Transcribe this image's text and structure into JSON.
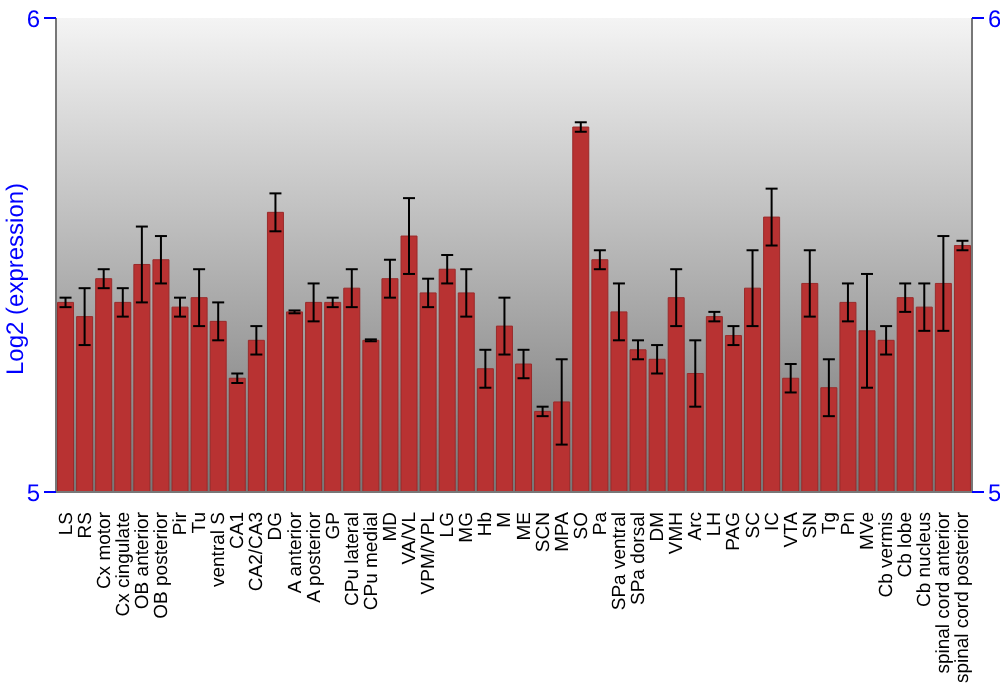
{
  "chart_data": {
    "type": "bar",
    "ylabel": "Log2 (expression)",
    "categories": [
      "LS",
      "RS",
      "Cx motor",
      "Cx cingulate",
      "OB anterior",
      "OB posterior",
      "Pir",
      "Tu",
      "ventral S",
      "CA1",
      "CA2/CA3",
      "DG",
      "A anterior",
      "A posterior",
      "GP",
      "CPu lateral",
      "CPu medial",
      "MD",
      "VA/VL",
      "VPM/VPL",
      "LG",
      "MG",
      "Hb",
      "M",
      "ME",
      "SCN",
      "MPA",
      "SO",
      "Pa",
      "SPa ventral",
      "SPa dorsal",
      "DM",
      "VMH",
      "Arc",
      "LH",
      "PAG",
      "SC",
      "IC",
      "VTA",
      "SN",
      "Tg",
      "Pn",
      "MVe",
      "Cb vermis",
      "Cb lobe",
      "Cb nucleus",
      "spinal cord anterior",
      "spinal cord posterior"
    ],
    "values": [
      5.4,
      5.37,
      5.45,
      5.4,
      5.48,
      5.49,
      5.39,
      5.41,
      5.36,
      5.24,
      5.32,
      5.59,
      5.38,
      5.4,
      5.4,
      5.43,
      5.32,
      5.45,
      5.54,
      5.42,
      5.47,
      5.42,
      5.26,
      5.35,
      5.27,
      5.17,
      5.19,
      5.77,
      5.49,
      5.38,
      5.3,
      5.28,
      5.41,
      5.25,
      5.37,
      5.33,
      5.43,
      5.58,
      5.24,
      5.44,
      5.22,
      5.4,
      5.34,
      5.32,
      5.41,
      5.39,
      5.44,
      5.52
    ],
    "errors": [
      0.01,
      0.06,
      0.02,
      0.03,
      0.08,
      0.05,
      0.02,
      0.06,
      0.04,
      0.01,
      0.03,
      0.04,
      0.003,
      0.04,
      0.01,
      0.04,
      0.002,
      0.04,
      0.08,
      0.03,
      0.03,
      0.05,
      0.04,
      0.06,
      0.03,
      0.01,
      0.09,
      0.01,
      0.02,
      0.06,
      0.02,
      0.03,
      0.06,
      0.07,
      0.01,
      0.02,
      0.08,
      0.06,
      0.03,
      0.07,
      0.06,
      0.04,
      0.12,
      0.03,
      0.03,
      0.05,
      0.1,
      0.01
    ],
    "color": "#b83232",
    "ylim": [
      5,
      6
    ],
    "yticks": [
      5,
      6
    ],
    "y2lim": [
      5,
      6
    ],
    "y2ticks": [
      5,
      6
    ]
  }
}
